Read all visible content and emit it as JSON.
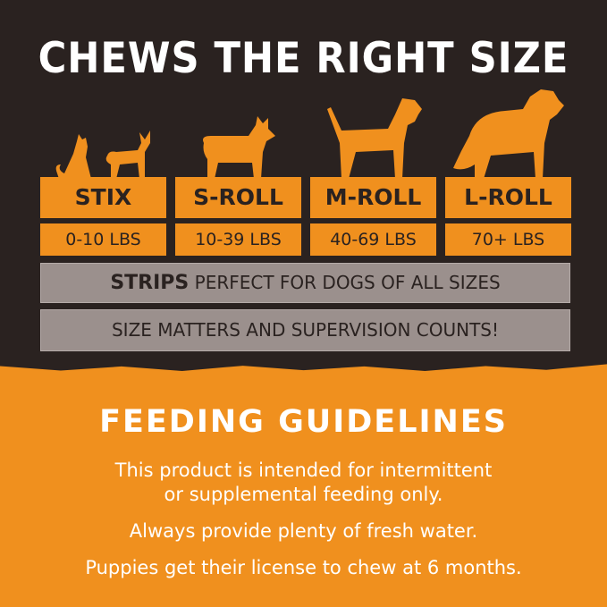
{
  "title": "CHEWS THE RIGHT SIZE",
  "sizes": [
    {
      "name": "STIX",
      "weight": "0-10 LBS",
      "icon": "cat-and-small-dog-silhouette-icon"
    },
    {
      "name": "S-ROLL",
      "weight": "10-39 LBS",
      "icon": "corgi-silhouette-icon"
    },
    {
      "name": "M-ROLL",
      "weight": "40-69 LBS",
      "icon": "medium-dog-silhouette-icon"
    },
    {
      "name": "L-ROLL",
      "weight": "70+ LBS",
      "icon": "large-dog-silhouette-icon"
    }
  ],
  "strips": {
    "bold": "STRIPS",
    "text": " PERFECT FOR DOGS OF ALL SIZES"
  },
  "notice": "SIZE MATTERS AND SUPERVISION COUNTS!",
  "feeding": {
    "title": "FEEDING GUIDELINES",
    "line1": "This product is intended for intermittent",
    "line2": "or supplemental feeding only.",
    "line3": "Always provide plenty of fresh water.",
    "line4": "Puppies get their license to chew at 6 months."
  },
  "colors": {
    "dark": "#2a2220",
    "orange": "#f0901e",
    "gray": "#9b908d",
    "white": "#ffffff"
  }
}
